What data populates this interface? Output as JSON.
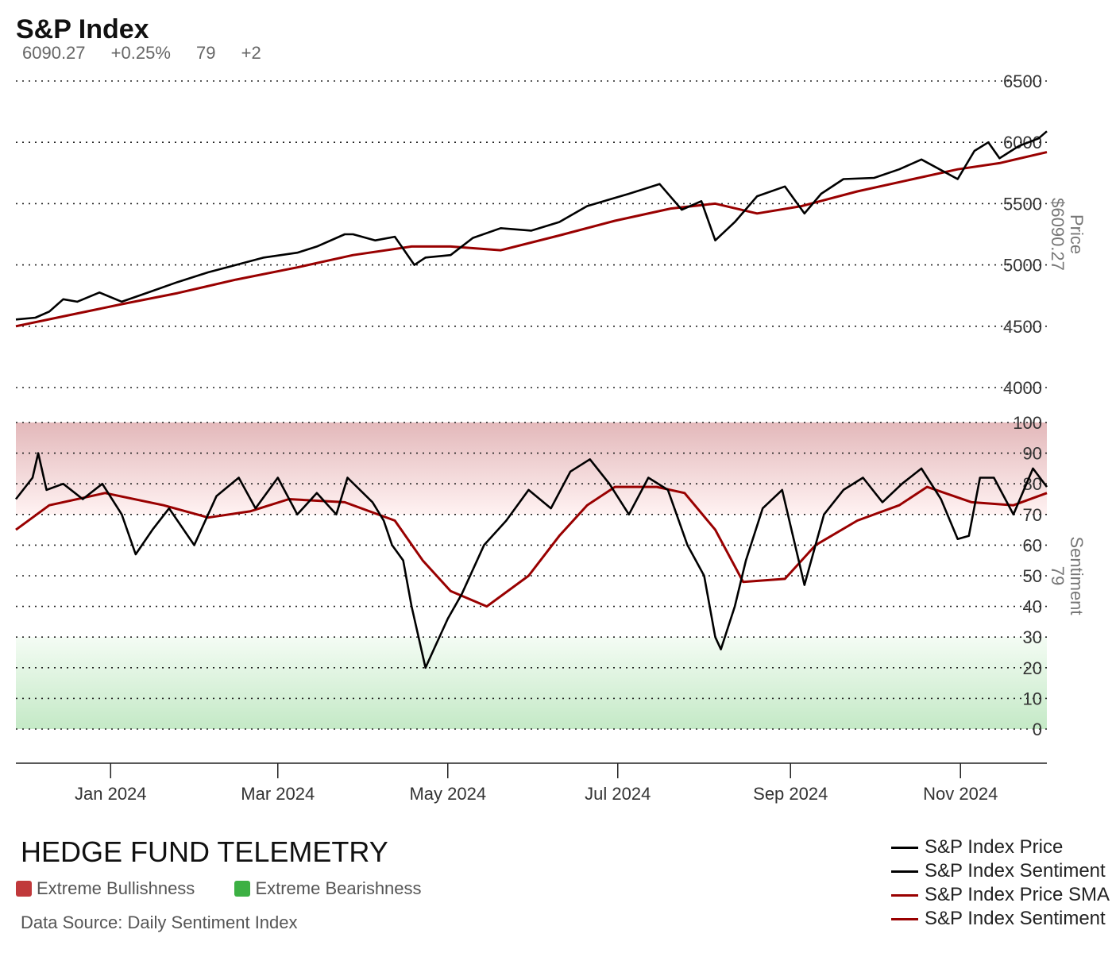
{
  "header": {
    "title": "S&P Index",
    "last_price": "6090.27",
    "change_pct": "+0.25%",
    "sentiment": "79",
    "sentiment_change": "+2"
  },
  "footer": {
    "brand": "HEDGE FUND TELEMETRY",
    "zone_bull_label": "Extreme Bullishness",
    "zone_bear_label": "Extreme Bearishness",
    "source": "Data Source: Daily Sentiment Index"
  },
  "legend": {
    "items": [
      {
        "label": "S&P Index Price",
        "color": "#000000"
      },
      {
        "label": "S&P Index Sentiment",
        "color": "#000000"
      },
      {
        "label": "S&P Index Price SMA",
        "color": "#990000"
      },
      {
        "label": "S&P Index Sentiment",
        "color": "#990000"
      }
    ]
  },
  "colors": {
    "price": "#000000",
    "sentiment": "#000000",
    "sma": "#990000",
    "bull_zone": "#c0393b",
    "bear_zone": "#3cb043"
  },
  "chart_data": {
    "type": "line",
    "x_ticks": [
      "Jan 2024",
      "Mar 2024",
      "May 2024",
      "Jul 2024",
      "Sep 2024",
      "Nov 2024"
    ],
    "x_tick_dates": [
      "2024-01-01",
      "2024-03-01",
      "2024-05-01",
      "2024-07-01",
      "2024-09-01",
      "2024-11-01"
    ],
    "x_range": [
      "2023-11-28",
      "2024-12-02"
    ],
    "price_panel": {
      "ylabel": "Price",
      "ylabel_value": "$6090.27",
      "ylim": [
        4000,
        6500
      ],
      "y_ticks": [
        "6500",
        "6000",
        "5500",
        "5000",
        "4500",
        "4000"
      ],
      "grid": "dotted",
      "series": [
        {
          "name": "S&P Index Price",
          "color": "#000000",
          "points": [
            [
              "2023-11-28",
              4555
            ],
            [
              "2023-12-05",
              4570
            ],
            [
              "2023-12-10",
              4620
            ],
            [
              "2023-12-15",
              4720
            ],
            [
              "2023-12-20",
              4700
            ],
            [
              "2023-12-28",
              4775
            ],
            [
              "2024-01-05",
              4700
            ],
            [
              "2024-01-15",
              4780
            ],
            [
              "2024-01-25",
              4860
            ],
            [
              "2024-02-05",
              4940
            ],
            [
              "2024-02-15",
              5000
            ],
            [
              "2024-02-25",
              5060
            ],
            [
              "2024-03-08",
              5100
            ],
            [
              "2024-03-15",
              5150
            ],
            [
              "2024-03-25",
              5250
            ],
            [
              "2024-03-28",
              5250
            ],
            [
              "2024-04-05",
              5200
            ],
            [
              "2024-04-12",
              5230
            ],
            [
              "2024-04-19",
              5000
            ],
            [
              "2024-04-23",
              5060
            ],
            [
              "2024-05-02",
              5080
            ],
            [
              "2024-05-10",
              5220
            ],
            [
              "2024-05-20",
              5300
            ],
            [
              "2024-05-31",
              5280
            ],
            [
              "2024-06-10",
              5350
            ],
            [
              "2024-06-20",
              5480
            ],
            [
              "2024-07-05",
              5580
            ],
            [
              "2024-07-16",
              5660
            ],
            [
              "2024-07-24",
              5450
            ],
            [
              "2024-07-31",
              5520
            ],
            [
              "2024-08-05",
              5200
            ],
            [
              "2024-08-12",
              5350
            ],
            [
              "2024-08-20",
              5560
            ],
            [
              "2024-08-30",
              5640
            ],
            [
              "2024-09-06",
              5420
            ],
            [
              "2024-09-12",
              5580
            ],
            [
              "2024-09-20",
              5700
            ],
            [
              "2024-10-01",
              5710
            ],
            [
              "2024-10-10",
              5780
            ],
            [
              "2024-10-18",
              5860
            ],
            [
              "2024-10-31",
              5700
            ],
            [
              "2024-11-06",
              5930
            ],
            [
              "2024-11-11",
              6000
            ],
            [
              "2024-11-15",
              5870
            ],
            [
              "2024-11-22",
              5970
            ],
            [
              "2024-11-29",
              6032
            ],
            [
              "2024-12-02",
              6090
            ]
          ]
        },
        {
          "name": "S&P Index Price SMA",
          "color": "#990000",
          "points": [
            [
              "2023-11-28",
              4500
            ],
            [
              "2023-12-15",
              4580
            ],
            [
              "2024-01-05",
              4680
            ],
            [
              "2024-01-25",
              4770
            ],
            [
              "2024-02-15",
              4880
            ],
            [
              "2024-03-08",
              4980
            ],
            [
              "2024-03-28",
              5080
            ],
            [
              "2024-04-18",
              5150
            ],
            [
              "2024-05-02",
              5150
            ],
            [
              "2024-05-20",
              5120
            ],
            [
              "2024-06-10",
              5240
            ],
            [
              "2024-06-30",
              5360
            ],
            [
              "2024-07-20",
              5460
            ],
            [
              "2024-08-05",
              5500
            ],
            [
              "2024-08-20",
              5420
            ],
            [
              "2024-09-05",
              5480
            ],
            [
              "2024-09-25",
              5600
            ],
            [
              "2024-10-15",
              5700
            ],
            [
              "2024-10-31",
              5780
            ],
            [
              "2024-11-15",
              5830
            ],
            [
              "2024-12-02",
              5920
            ]
          ]
        }
      ]
    },
    "sentiment_panel": {
      "ylabel": "Sentiment",
      "ylabel_value": "79",
      "ylim": [
        0,
        100
      ],
      "y_ticks": [
        "100",
        "90",
        "80",
        "70",
        "60",
        "50",
        "40",
        "30",
        "20",
        "10",
        "0"
      ],
      "bull_zone": [
        70,
        100
      ],
      "bear_zone": [
        0,
        30
      ],
      "grid": "dotted",
      "series": [
        {
          "name": "S&P Index Sentiment",
          "color": "#000000",
          "points": [
            [
              "2023-11-28",
              75
            ],
            [
              "2023-12-04",
              82
            ],
            [
              "2023-12-06",
              90
            ],
            [
              "2023-12-09",
              78
            ],
            [
              "2023-12-15",
              80
            ],
            [
              "2023-12-22",
              75
            ],
            [
              "2023-12-29",
              80
            ],
            [
              "2024-01-05",
              70
            ],
            [
              "2024-01-10",
              57
            ],
            [
              "2024-01-16",
              65
            ],
            [
              "2024-01-22",
              72
            ],
            [
              "2024-01-31",
              60
            ],
            [
              "2024-02-08",
              76
            ],
            [
              "2024-02-16",
              82
            ],
            [
              "2024-02-22",
              72
            ],
            [
              "2024-03-01",
              82
            ],
            [
              "2024-03-08",
              70
            ],
            [
              "2024-03-15",
              77
            ],
            [
              "2024-03-22",
              70
            ],
            [
              "2024-03-26",
              82
            ],
            [
              "2024-04-04",
              74
            ],
            [
              "2024-04-08",
              68
            ],
            [
              "2024-04-11",
              60
            ],
            [
              "2024-04-15",
              55
            ],
            [
              "2024-04-18",
              40
            ],
            [
              "2024-04-23",
              20
            ],
            [
              "2024-04-26",
              26
            ],
            [
              "2024-05-01",
              36
            ],
            [
              "2024-05-06",
              44
            ],
            [
              "2024-05-14",
              60
            ],
            [
              "2024-05-22",
              68
            ],
            [
              "2024-05-30",
              78
            ],
            [
              "2024-06-07",
              72
            ],
            [
              "2024-06-14",
              84
            ],
            [
              "2024-06-21",
              88
            ],
            [
              "2024-06-28",
              80
            ],
            [
              "2024-07-05",
              70
            ],
            [
              "2024-07-12",
              82
            ],
            [
              "2024-07-19",
              78
            ],
            [
              "2024-07-26",
              60
            ],
            [
              "2024-08-01",
              50
            ],
            [
              "2024-08-05",
              30
            ],
            [
              "2024-08-07",
              26
            ],
            [
              "2024-08-12",
              40
            ],
            [
              "2024-08-16",
              55
            ],
            [
              "2024-08-22",
              72
            ],
            [
              "2024-08-29",
              78
            ],
            [
              "2024-09-06",
              47
            ],
            [
              "2024-09-13",
              70
            ],
            [
              "2024-09-20",
              78
            ],
            [
              "2024-09-27",
              82
            ],
            [
              "2024-10-04",
              74
            ],
            [
              "2024-10-11",
              80
            ],
            [
              "2024-10-18",
              85
            ],
            [
              "2024-10-25",
              75
            ],
            [
              "2024-10-31",
              62
            ],
            [
              "2024-11-04",
              63
            ],
            [
              "2024-11-08",
              82
            ],
            [
              "2024-11-13",
              82
            ],
            [
              "2024-11-20",
              70
            ],
            [
              "2024-11-27",
              85
            ],
            [
              "2024-12-02",
              79
            ]
          ]
        },
        {
          "name": "S&P Index Sentiment",
          "color": "#990000",
          "points": [
            [
              "2023-11-28",
              65
            ],
            [
              "2023-12-10",
              73
            ],
            [
              "2023-12-30",
              77
            ],
            [
              "2024-01-20",
              73
            ],
            [
              "2024-02-05",
              69
            ],
            [
              "2024-02-20",
              71
            ],
            [
              "2024-03-05",
              75
            ],
            [
              "2024-03-25",
              74
            ],
            [
              "2024-04-12",
              68
            ],
            [
              "2024-04-22",
              55
            ],
            [
              "2024-05-02",
              45
            ],
            [
              "2024-05-15",
              40
            ],
            [
              "2024-05-30",
              50
            ],
            [
              "2024-06-10",
              63
            ],
            [
              "2024-06-20",
              73
            ],
            [
              "2024-06-30",
              79
            ],
            [
              "2024-07-15",
              79
            ],
            [
              "2024-07-25",
              77
            ],
            [
              "2024-08-05",
              65
            ],
            [
              "2024-08-15",
              48
            ],
            [
              "2024-08-30",
              49
            ],
            [
              "2024-09-10",
              60
            ],
            [
              "2024-09-25",
              68
            ],
            [
              "2024-10-10",
              73
            ],
            [
              "2024-10-20",
              79
            ],
            [
              "2024-11-05",
              74
            ],
            [
              "2024-11-20",
              73
            ],
            [
              "2024-12-02",
              77
            ]
          ]
        }
      ]
    }
  }
}
